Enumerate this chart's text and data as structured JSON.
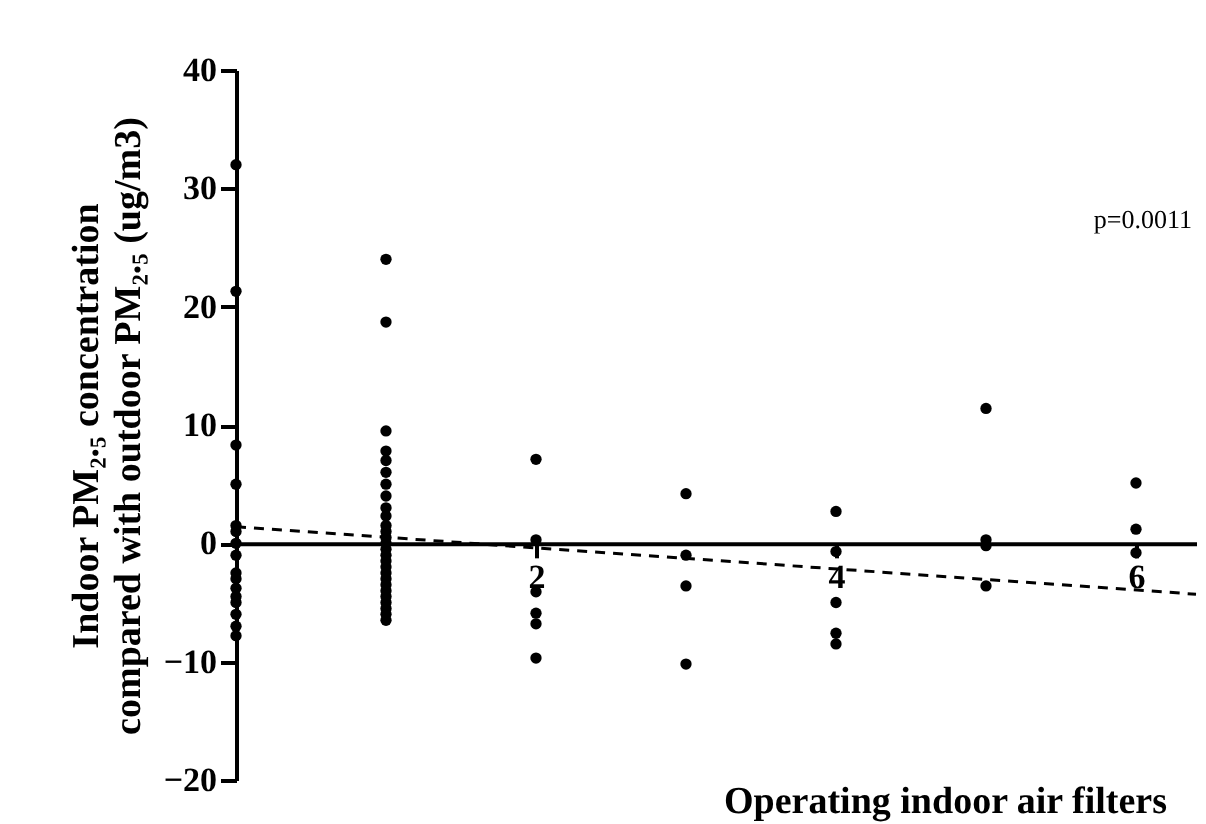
{
  "chart_data": {
    "type": "scatter",
    "xlabel": "Operating indoor air filters",
    "ylabel": "Indoor PM₂.₅ concentration\ncompared with outdoor PM₂.₅ (ug/m3)",
    "xlim": [
      0,
      6.4
    ],
    "xticks": [
      2,
      4,
      6
    ],
    "ylim": [
      -20,
      40
    ],
    "yticks": [
      -20,
      -10,
      0,
      10,
      20,
      30,
      40
    ],
    "annotations": [
      "p=0.0011"
    ],
    "series": [
      {
        "color": "#000000",
        "marker": "circle",
        "x": [
          0,
          0,
          0,
          0,
          0,
          0,
          0,
          0,
          0,
          0,
          0,
          0,
          0,
          0,
          0,
          0,
          1,
          1,
          1,
          1,
          1,
          1,
          1,
          1,
          1,
          1,
          1,
          1,
          1,
          1,
          1,
          1,
          1,
          1,
          1,
          1,
          1,
          1,
          1,
          1,
          1,
          1,
          1,
          2,
          2,
          2,
          2,
          2,
          2,
          3,
          3,
          3,
          3,
          4,
          4,
          4,
          4,
          4,
          5,
          5,
          5,
          5,
          6,
          6,
          6
        ],
        "values": [
          32,
          21.3,
          8.3,
          5,
          1.5,
          1,
          0,
          -1,
          -2.5,
          -3,
          -3.8,
          -4.5,
          -5,
          -6,
          -7,
          -7.8,
          24,
          18.7,
          9.5,
          7.8,
          7,
          6,
          5,
          4,
          3,
          2.3,
          1.5,
          1,
          0.5,
          0,
          -0.5,
          -1,
          -1.5,
          -2,
          -2.5,
          -3,
          -3.5,
          -4,
          -4.5,
          -5,
          -5.5,
          -6,
          -6.5,
          7.1,
          0.3,
          -4.1,
          -5.9,
          -6.8,
          -9.7,
          4.2,
          -1,
          -3.6,
          -10.2,
          2.7,
          -0.7,
          -5,
          -7.6,
          -8.5,
          11.4,
          0.3,
          -0.2,
          -3.6,
          5.1,
          1.2,
          -0.8
        ]
      },
      {
        "type": "line",
        "color": "#000000",
        "line_style": "dashed",
        "x": [
          0,
          6.4
        ],
        "values": [
          1.4,
          -4.3
        ]
      }
    ]
  }
}
